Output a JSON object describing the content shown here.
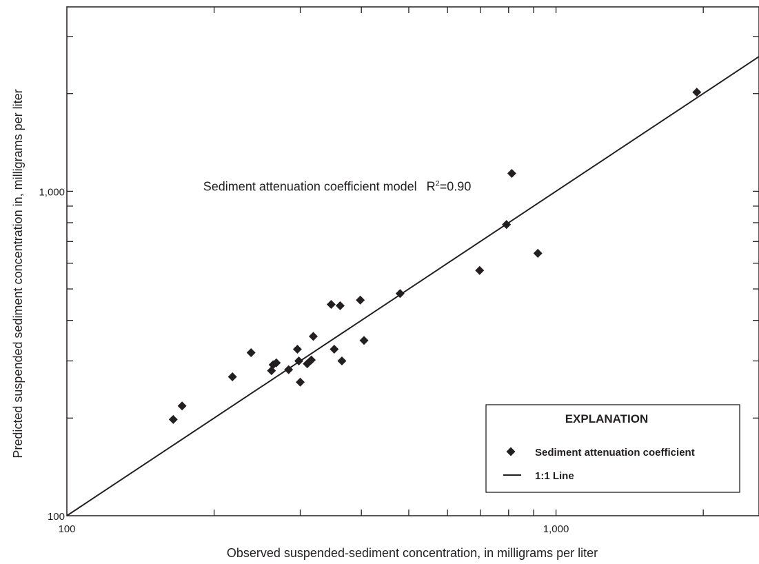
{
  "chart_data": {
    "type": "scatter",
    "x_scale": "log",
    "y_scale": "log",
    "xlim": [
      100,
      2600
    ],
    "ylim": [
      100,
      3700
    ],
    "xlabel": "Observed suspended-sediment concentration, in milligrams per liter",
    "ylabel": "Predicted suspended sediment concentration in, milligrams per liter",
    "x_tick_labels": [
      {
        "value": 100,
        "label": "100"
      },
      {
        "value": 1000,
        "label": "1,000"
      }
    ],
    "y_tick_labels": [
      {
        "value": 100,
        "label": "100"
      },
      {
        "value": 1000,
        "label": "1,000"
      }
    ],
    "x_major_ticks": [
      100,
      1000
    ],
    "x_minor_ticks": [
      200,
      300,
      400,
      500,
      600,
      700,
      800,
      900,
      2000
    ],
    "y_major_ticks": [
      100,
      1000
    ],
    "y_minor_ticks": [
      200,
      300,
      400,
      500,
      600,
      700,
      800,
      900,
      2000,
      3000
    ],
    "grid": false,
    "annotation": {
      "text": "Sediment attenuation coefficient model",
      "r2_prefix": "R",
      "r2_sup": "2",
      "r2_value": "=0.90",
      "at": [
        190,
        1000
      ]
    },
    "legend": {
      "title": "EXPLANATION",
      "placement": "bottom-right",
      "entries": [
        {
          "label": "Sediment attenuation coefficient",
          "marker": "diamond"
        },
        {
          "label": "1:1 Line",
          "marker": "line"
        }
      ]
    },
    "series": [
      {
        "name": "Sediment attenuation coefficient",
        "marker": "diamond",
        "color": "#231f20",
        "points": [
          [
            165,
            198
          ],
          [
            172,
            218
          ],
          [
            218,
            268
          ],
          [
            238,
            318
          ],
          [
            262,
            280
          ],
          [
            264,
            292
          ],
          [
            268,
            296
          ],
          [
            284,
            282
          ],
          [
            296,
            326
          ],
          [
            298,
            300
          ],
          [
            300,
            258
          ],
          [
            310,
            294
          ],
          [
            316,
            302
          ],
          [
            319,
            357
          ],
          [
            347,
            448
          ],
          [
            352,
            326
          ],
          [
            362,
            444
          ],
          [
            365,
            300
          ],
          [
            398,
            462
          ],
          [
            405,
            347
          ],
          [
            480,
            484
          ],
          [
            698,
            570
          ],
          [
            792,
            790
          ],
          [
            812,
            1135
          ],
          [
            918,
            644
          ],
          [
            1940,
            2020
          ]
        ]
      },
      {
        "name": "1:1 Line",
        "type": "line",
        "color": "#231f20",
        "points": [
          [
            100,
            100
          ],
          [
            2600,
            2600
          ]
        ]
      }
    ]
  }
}
